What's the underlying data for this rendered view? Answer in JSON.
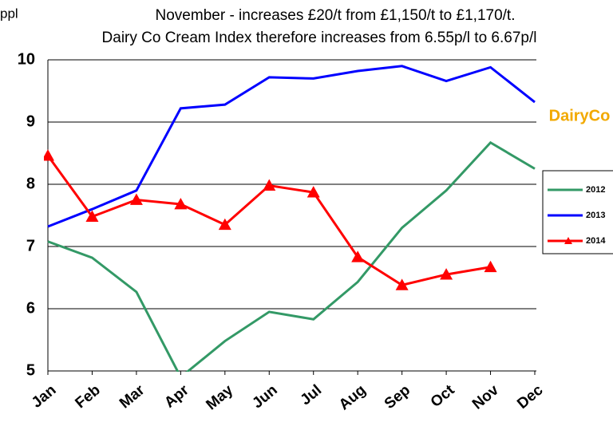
{
  "chart_data": {
    "type": "line",
    "title": "November - increases £20/t from £1,150/t to £1,170/t.",
    "subtitle": "Dairy Co Cream Index therefore increases from 6.55p/l to 6.67p/l",
    "y_label": "ppl",
    "logo": "DairyCo",
    "categories": [
      "Jan",
      "Feb",
      "Mar",
      "Apr",
      "May",
      "Jun",
      "Jul",
      "Aug",
      "Sep",
      "Oct",
      "Nov",
      "Dec"
    ],
    "series": [
      {
        "name": "2012",
        "color": "#339966",
        "values": [
          7.08,
          6.82,
          6.27,
          4.9,
          5.48,
          5.95,
          5.83,
          6.43,
          7.3,
          7.9,
          8.67,
          8.25
        ]
      },
      {
        "name": "2013",
        "color": "#0000ff",
        "values": [
          7.32,
          7.6,
          7.9,
          9.22,
          9.28,
          9.72,
          9.7,
          9.82,
          9.9,
          9.66,
          9.88,
          9.32
        ]
      },
      {
        "name": "2014",
        "color": "#ff0000",
        "marker": "triangle",
        "values": [
          8.46,
          7.48,
          7.75,
          7.68,
          7.35,
          7.98,
          7.87,
          6.83,
          6.38,
          6.55,
          6.67,
          null
        ]
      }
    ],
    "ylim": [
      5,
      10
    ],
    "yticks": [
      5,
      6,
      7,
      8,
      9,
      10
    ],
    "grid": true
  }
}
